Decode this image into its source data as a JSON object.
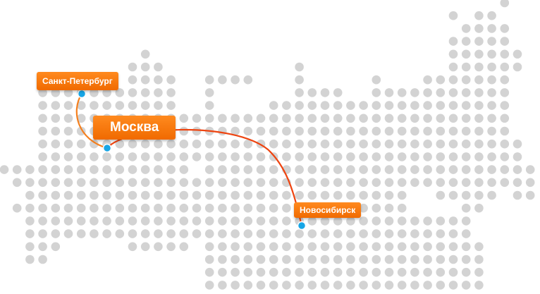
{
  "colors": {
    "dot": "#d3d3d3",
    "city_marker": "#18a6e6",
    "route_spb": "#f5801f",
    "route_nsk": "#ee4410",
    "label_bg": "#f57410",
    "label_text": "#ffffff"
  },
  "cities": {
    "spb": {
      "label": "Санкт-Петербург"
    },
    "msk": {
      "label": "Москва"
    },
    "nsk": {
      "label": "Новосибирск"
    }
  },
  "routes": [
    {
      "from": "msk",
      "to": "spb"
    },
    {
      "from": "msk",
      "to": "nsk"
    }
  ]
}
